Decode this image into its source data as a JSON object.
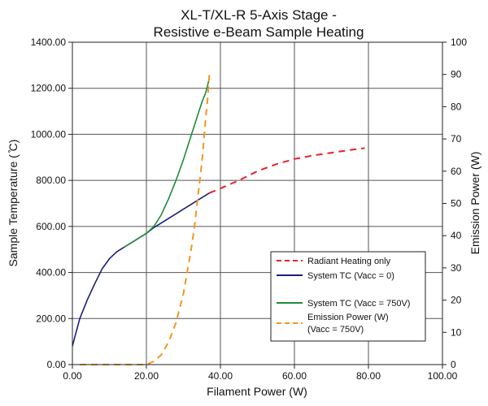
{
  "chart_data": {
    "type": "line",
    "title": [
      "XL-T/XL-R 5-Axis Stage -",
      "Resistive e-Beam Sample Heating"
    ],
    "xlabel": "Filament Power (W)",
    "ylabel": "Sample Temperature ( ̊C)",
    "ylabel_right": "Emission Power (W)",
    "xlim": [
      0,
      100
    ],
    "ylim": [
      0,
      1400
    ],
    "ylim_right": [
      0,
      100
    ],
    "grid": true,
    "legend_position": "bottom-right",
    "x_ticks": [
      0,
      20,
      40,
      60,
      80,
      100
    ],
    "x_tick_labels": [
      "0.00",
      "20.00",
      "40.00",
      "60.00",
      "80.00",
      "100.00"
    ],
    "y_ticks": [
      0,
      200,
      400,
      600,
      800,
      1000,
      1200,
      1400
    ],
    "y_tick_labels": [
      "0.00",
      "200.00",
      "400.00",
      "600.00",
      "800.00",
      "1000.00",
      "1200.00",
      "1400.00"
    ],
    "y_right_ticks": [
      0,
      10,
      20,
      30,
      40,
      50,
      60,
      70,
      80,
      90,
      100
    ],
    "y_right_tick_labels": [
      "0",
      "10",
      "20",
      "30",
      "40",
      "50",
      "60",
      "70",
      "80",
      "90",
      "100"
    ],
    "series": [
      {
        "name": "Radiant Heating only",
        "color": "#e8202a",
        "style": "dashed",
        "axis": "left",
        "x": [
          37,
          40,
          45,
          50,
          55,
          60,
          65,
          70,
          75,
          79
        ],
        "y": [
          745,
          765,
          800,
          840,
          870,
          893,
          908,
          920,
          932,
          940
        ]
      },
      {
        "name": "System TC (Vacc = 0)",
        "color": "#1a1f7a",
        "style": "solid",
        "axis": "left",
        "x": [
          0,
          1,
          2,
          4,
          6,
          8,
          10,
          12,
          15,
          18,
          20,
          22,
          25,
          28,
          30,
          32,
          34,
          36,
          37
        ],
        "y": [
          80,
          140,
          200,
          280,
          350,
          415,
          460,
          490,
          520,
          550,
          570,
          595,
          625,
          655,
          675,
          695,
          715,
          735,
          745
        ]
      },
      {
        "name": "System TC (Vacc = 750V)",
        "color": "#1f8c3a",
        "style": "solid",
        "axis": "left",
        "x": [
          14,
          17,
          20,
          22,
          24,
          26,
          28,
          30,
          32,
          34,
          35,
          36,
          36.5,
          37
        ],
        "y": [
          510,
          540,
          570,
          600,
          650,
          720,
          800,
          890,
          990,
          1090,
          1140,
          1180,
          1210,
          1245
        ]
      },
      {
        "name": "Emission Power (W)",
        "name_line2": "(Vacc = 750V)",
        "color": "#f5961e",
        "style": "dashed",
        "axis": "right",
        "x": [
          2,
          6,
          10,
          14,
          18,
          20,
          22,
          24,
          26,
          28,
          30,
          32,
          33,
          34,
          35,
          36,
          36.5,
          37
        ],
        "y": [
          0,
          0,
          0,
          0,
          0,
          0,
          1,
          3,
          7,
          13,
          22,
          35,
          43,
          53,
          63,
          76,
          82,
          90
        ]
      }
    ]
  }
}
